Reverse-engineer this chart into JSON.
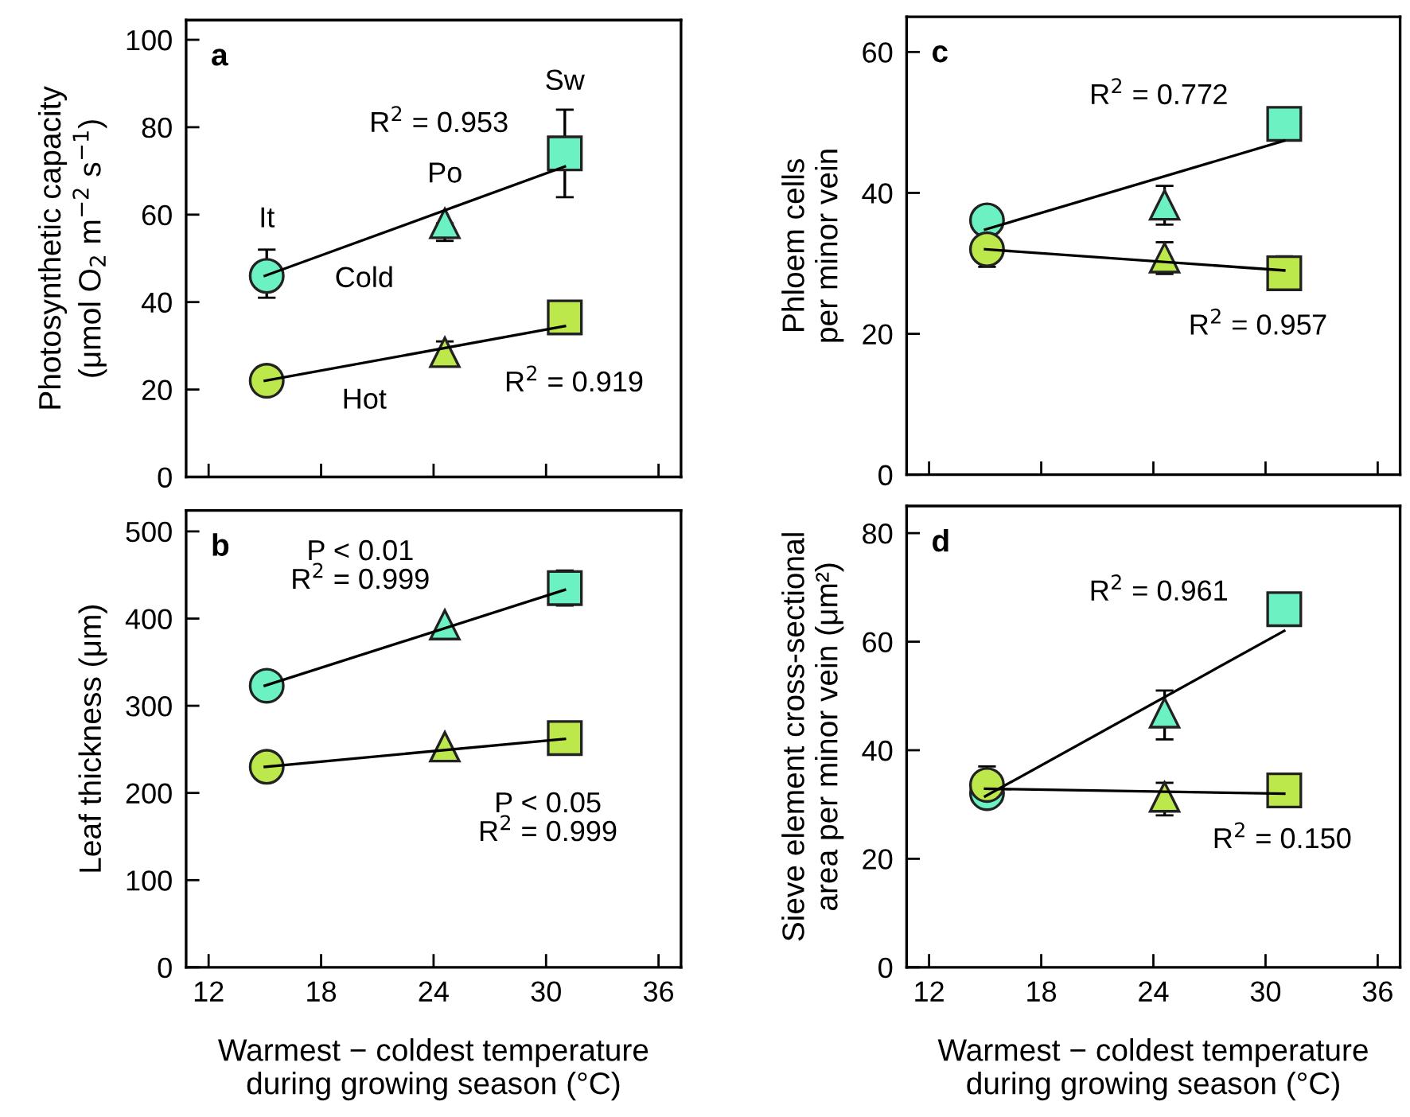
{
  "chart_data": [
    {
      "type": "scatter",
      "ylabel": "Photosynthetic capacity\n(μmol O$_{2}$ m$^{−2}$ s$^{−1}$)",
      "xlim": [
        10.8,
        37.2
      ],
      "xticks": [
        12,
        18,
        24,
        30,
        36
      ],
      "ylim": [
        0,
        104.5
      ],
      "yticks": [
        0,
        20,
        40,
        60,
        80,
        100
      ],
      "tick_labels": "y",
      "grid": false,
      "legend": false,
      "annotations": [
        "a",
        "It",
        "Po",
        "Sw",
        "Cold",
        "Hot",
        "R$^{2}$ = 0.953",
        "R$^{2}$ = 0.919"
      ],
      "series": [
        {
          "type": "line",
          "x": [
            15,
            31
          ],
          "values": [
            46,
            71
          ],
          "color": "#000000",
          "marker": "none",
          "line_style": "solid"
        },
        {
          "type": "line",
          "x": [
            15,
            31
          ],
          "values": [
            22,
            34.5
          ],
          "color": "#000000",
          "marker": "none",
          "line_style": "solid"
        },
        {
          "type": "scatter",
          "marker": "circle",
          "x": [
            15.1,
            15.1
          ],
          "values": [
            46,
            22
          ],
          "colors": [
            "#6cf2c2",
            "#bde84c"
          ],
          "errors": [
            [
              41,
              52
            ],
            null
          ]
        },
        {
          "marker": "triangle",
          "x": [
            24.6,
            24.6
          ],
          "values": [
            58,
            28.5
          ],
          "colors": [
            "#6cf2c2",
            "#bde84c"
          ],
          "errors": [
            [
              54,
              58
            ],
            [
              25.5,
              31
            ]
          ]
        },
        {
          "type": "scatter",
          "marker": "square",
          "x": [
            31,
            31
          ],
          "values": [
            74,
            36.5
          ],
          "colors": [
            "#6cf2c2",
            "#bde84c"
          ],
          "errors": [
            [
              64,
              84
            ],
            null
          ]
        }
      ]
    },
    {
      "type": "scatter",
      "ylabel": "Phloem cells\nper minor vein",
      "xlim": [
        10.8,
        37.2
      ],
      "xticks": [
        12,
        18,
        24,
        30,
        36
      ],
      "ylim": [
        0,
        65
      ],
      "yticks": [
        0,
        20,
        40,
        60
      ],
      "tick_labels": "y",
      "grid": false,
      "legend": false,
      "annotations": [
        "c",
        "R$^{2}$ = 0.772",
        "R$^{2}$ = 0.957"
      ],
      "series": [
        {
          "type": "line",
          "x": [
            15,
            31
          ],
          "values": [
            34.8,
            47.4
          ],
          "color": "#000000",
          "marker": "none",
          "line_style": "solid"
        },
        {
          "type": "line",
          "x": [
            15,
            31
          ],
          "values": [
            32,
            29
          ],
          "color": "#000000",
          "marker": "none",
          "line_style": "solid"
        },
        {
          "type": "scatter",
          "marker": "circle",
          "x": [
            15.1,
            15.1
          ],
          "values": [
            36.1,
            32
          ],
          "colors": [
            "#6cf2c2",
            "#bde84c"
          ],
          "errors": [
            null,
            [
              29.5,
              34.5
            ]
          ]
        },
        {
          "type": "scatter",
          "marker": "triangle",
          "x": [
            24.6,
            24.6
          ],
          "values": [
            38.3,
            30.8
          ],
          "colors": [
            "#6cf2c2",
            "#bde84c"
          ],
          "errors": [
            [
              35.5,
              41
            ],
            [
              28.5,
              33
            ]
          ]
        },
        {
          "type": "scatter",
          "marker": "square",
          "x": [
            31,
            31
          ],
          "values": [
            49.8,
            28.6
          ],
          "colors": [
            "#6cf2c2",
            "#bde84c"
          ],
          "errors": [
            null,
            [
              26.5,
              31
            ]
          ]
        }
      ]
    },
    {
      "type": "scatter",
      "ylabel": "Leaf thickness (μm)",
      "xlabel": "Warmest − coldest temperature\nduring growing season (°C)",
      "xlim": [
        10.8,
        37.2
      ],
      "xticks": [
        12,
        18,
        24,
        30,
        36
      ],
      "ylim": [
        0,
        524
      ],
      "yticks": [
        0,
        100,
        200,
        300,
        400,
        500
      ],
      "grid": false,
      "legend": false,
      "annotations": [
        "b",
        "P < 0.01\nR$^{2}$ = 0.999",
        "P < 0.05\nR$^{2}$ = 0.999"
      ],
      "series": [
        {
          "type": "line",
          "x": [
            15,
            31
          ],
          "values": [
            323,
            433
          ],
          "color": "#000000",
          "marker": "none",
          "line_style": "solid"
        },
        {
          "type": "line",
          "x": [
            15,
            31
          ],
          "values": [
            230,
            262
          ],
          "color": "#000000",
          "marker": "none",
          "line_style": "solid"
        },
        {
          "type": "scatter",
          "marker": "circle",
          "x": [
            15.1,
            15.1
          ],
          "values": [
            323,
            230
          ],
          "colors": [
            "#6cf2c2",
            "#bde84c"
          ],
          "errors": [
            null,
            null
          ]
        },
        {
          "type": "scatter",
          "marker": "triangle",
          "x": [
            24.6,
            24.6
          ],
          "values": [
            393,
            253
          ],
          "colors": [
            "#6cf2c2",
            "#bde84c"
          ],
          "errors": [
            null,
            null
          ]
        },
        {
          "type": "scatter",
          "marker": "square",
          "x": [
            31,
            31
          ],
          "values": [
            435,
            263
          ],
          "colors": [
            "#6cf2c2",
            "#bde84c"
          ],
          "errors": [
            [
              415,
              455
            ],
            null
          ]
        }
      ]
    },
    {
      "type": "scatter",
      "ylabel": "Sieve element cross-sectional\narea per minor vein (μm²)",
      "xlabel": "Warmest − coldest temperature\nduring growing season (°C)",
      "xlim": [
        10.8,
        37.2
      ],
      "xticks": [
        12,
        18,
        24,
        30,
        36
      ],
      "ylim": [
        0,
        85
      ],
      "yticks": [
        0,
        20,
        40,
        60,
        80
      ],
      "grid": false,
      "legend": false,
      "annotations": [
        "d",
        "R$^{2}$ = 0.961",
        "R$^{2}$ = 0.150"
      ],
      "series": [
        {
          "type": "line",
          "x": [
            15,
            31
          ],
          "values": [
            31.5,
            62
          ],
          "color": "#000000",
          "marker": "none",
          "line_style": "solid"
        },
        {
          "type": "line",
          "x": [
            15,
            31
          ],
          "values": [
            32.9,
            32
          ],
          "color": "#000000",
          "marker": "none",
          "line_style": "solid"
        },
        {
          "marker": "circle",
          "x": [
            15.1,
            15.1
          ],
          "values": [
            32.1,
            33.6
          ],
          "colors": [
            "#6cf2c2",
            "#bde84c"
          ],
          "errors": [
            [
              30,
              32.1
            ],
            [
              30.5,
              37
            ]
          ]
        },
        {
          "type": "scatter",
          "marker": "triangle",
          "x": [
            24.6,
            24.6
          ],
          "values": [
            46.9,
            31.4
          ],
          "colors": [
            "#6cf2c2",
            "#bde84c"
          ],
          "errors": [
            [
              42,
              51
            ],
            [
              28,
              34
            ]
          ]
        },
        {
          "type": "scatter",
          "marker": "square",
          "x": [
            31,
            31
          ],
          "values": [
            66,
            32.6
          ],
          "colors": [
            "#6cf2c2",
            "#bde84c"
          ],
          "errors": [
            null,
            null
          ]
        }
      ]
    }
  ]
}
